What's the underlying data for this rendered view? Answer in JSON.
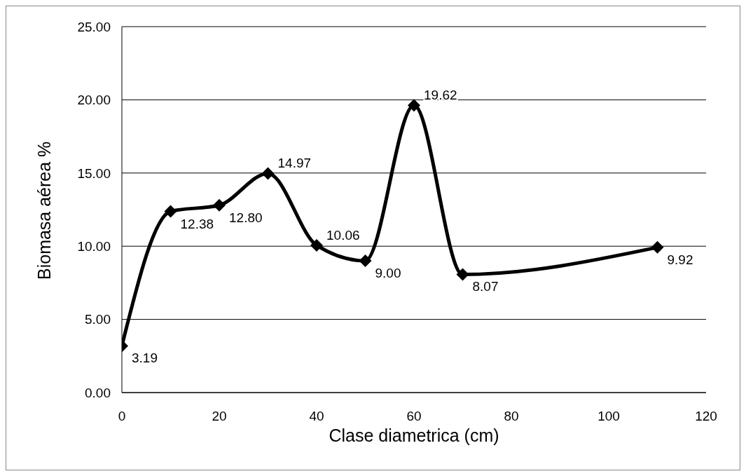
{
  "chart_data": {
    "type": "line",
    "xlabel": "Clase diametrica (cm)",
    "ylabel": "Biomasa aérea %",
    "x": [
      0,
      10,
      20,
      30,
      40,
      50,
      60,
      70,
      110
    ],
    "values": [
      3.19,
      12.38,
      12.8,
      14.97,
      10.06,
      9.0,
      19.62,
      8.07,
      9.92
    ],
    "value_labels": [
      "3.19",
      "12.38",
      "12.80",
      "14.97",
      "10.06",
      "9.00",
      "19.62",
      "8.07",
      "9.92"
    ],
    "color": "#000000",
    "marker": "diamond",
    "line_style": "solid",
    "grid": "y",
    "xlim": [
      0,
      120
    ],
    "xticks": [
      0,
      20,
      40,
      60,
      80,
      100,
      120
    ],
    "ylim": [
      0,
      25
    ],
    "yticks": [
      {
        "value": 0,
        "label": "0.00"
      },
      {
        "value": 5,
        "label": "5.00"
      },
      {
        "value": 10,
        "label": "10.00"
      },
      {
        "value": 15,
        "label": "15.00"
      },
      {
        "value": 20,
        "label": "20.00"
      },
      {
        "value": 25,
        "label": "25.00"
      }
    ]
  }
}
